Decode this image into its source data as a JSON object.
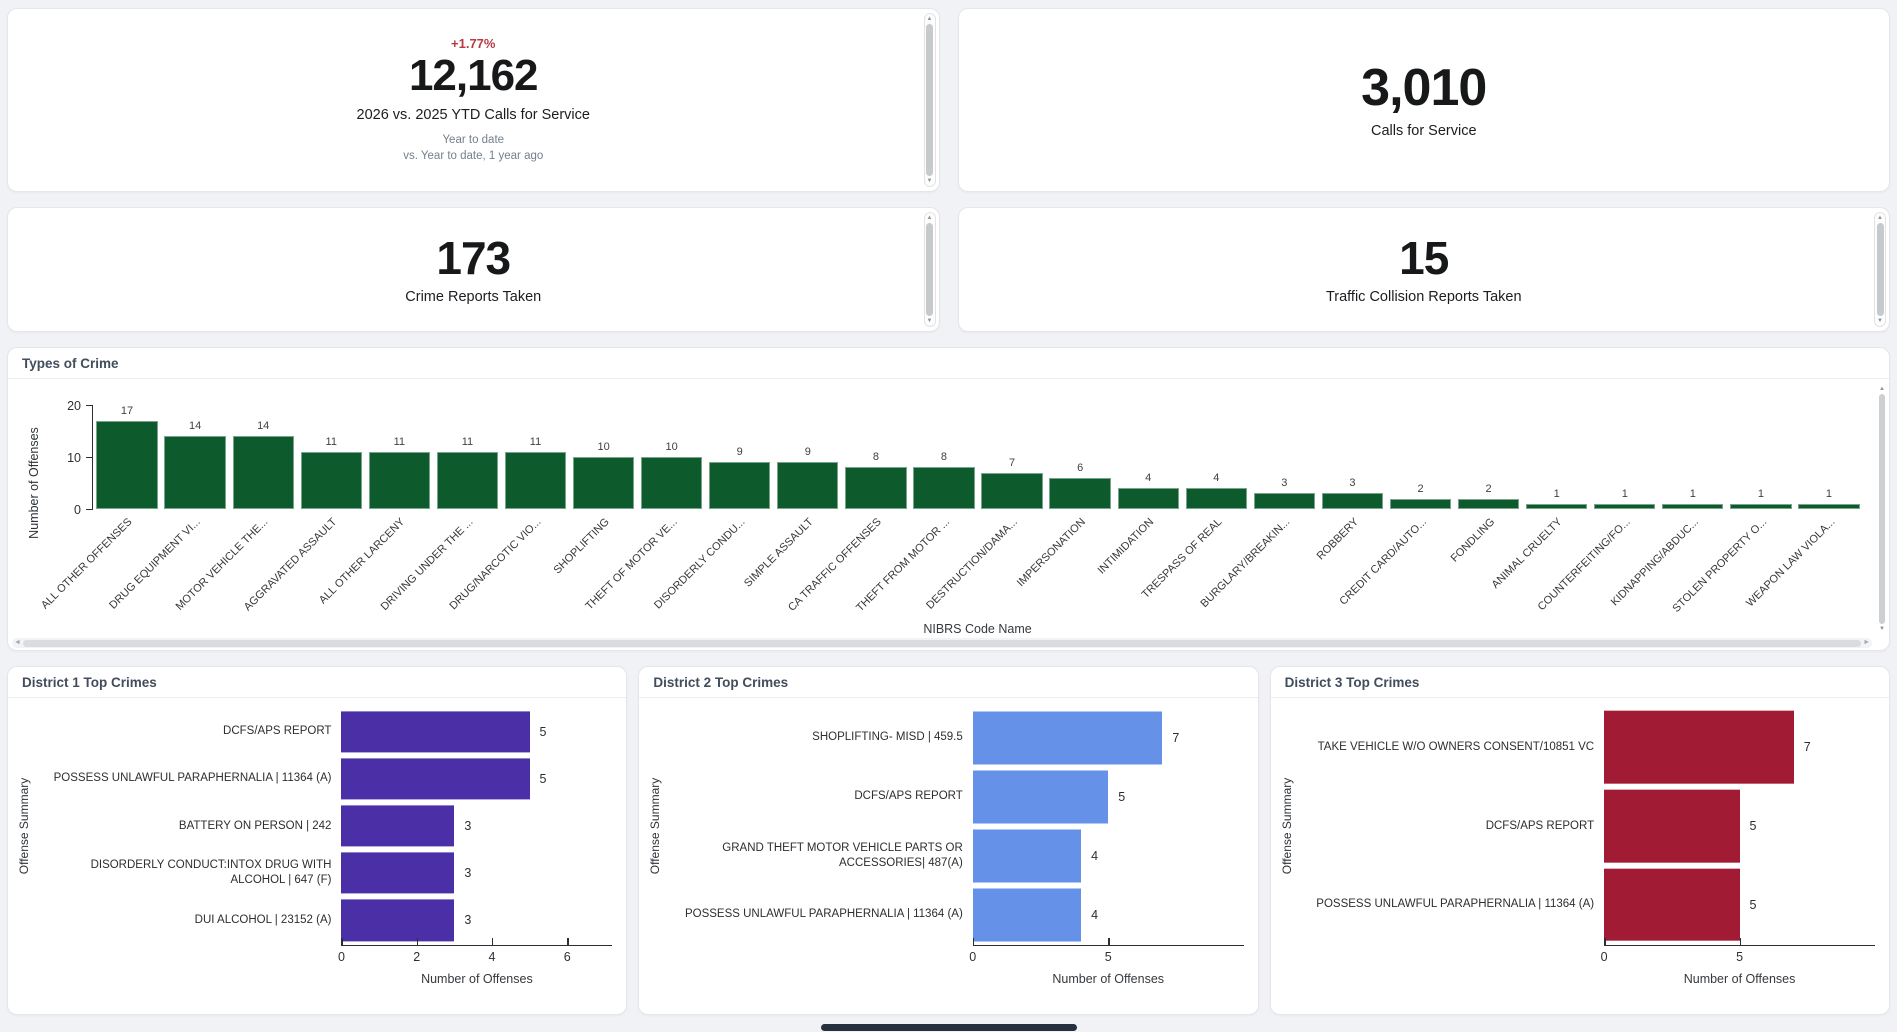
{
  "colors": {
    "page_bg": "#f0f2f5",
    "change_red": "#b83a44",
    "types_green": "#0d5a2c",
    "district1_purple": "#4b2fa6",
    "district2_blue": "#6691e8",
    "district3_red": "#a01b33"
  },
  "icons": {
    "scroll_up": "▲",
    "scroll_down": "▼",
    "scroll_left": "◄",
    "scroll_right": "►"
  },
  "kpis": {
    "ytd": {
      "change": "+1.77%",
      "value": "12,162",
      "label": "2026 vs. 2025 YTD Calls for Service",
      "sub1": "Year to date",
      "sub2": "vs. Year to date, 1 year ago"
    },
    "calls": {
      "value": "3,010",
      "label": "Calls for Service"
    },
    "crime_reports": {
      "value": "173",
      "label": "Crime Reports Taken"
    },
    "collisions": {
      "value": "15",
      "label": "Traffic Collision Reports Taken"
    }
  },
  "chart_data": [
    {
      "id": "types-of-crime",
      "type": "bar",
      "title": "Types of Crime",
      "xlabel": "NIBRS Code Name",
      "ylabel": "Number of Offenses",
      "ylim": [
        0,
        20
      ],
      "yticks": [
        0,
        10,
        20
      ],
      "grid": false,
      "bar_color": "#0d5a2c",
      "categories": [
        "ALL OTHER OFFENSES",
        "DRUG EQUIPMENT VI...",
        "MOTOR VEHICLE THE...",
        "AGGRAVATED ASSAULT",
        "ALL OTHER LARCENY",
        "DRIVING UNDER THE ...",
        "DRUG/NARCOTIC VIO...",
        "SHOPLIFTING",
        "THEFT OF MOTOR VE...",
        "DISORDERLY CONDU...",
        "SIMPLE ASSAULT",
        "CA TRAFFIC OFFENSES",
        "THEFT FROM MOTOR ...",
        "DESTRUCTION/DAMA...",
        "IMPERSONATION",
        "INTIMIDATION",
        "TRESPASS OF REAL",
        "BURGLARY/BREAKIN...",
        "ROBBERY",
        "CREDIT CARD/AUTO...",
        "FONDLING",
        "ANIMAL CRUELTY",
        "COUNTERFEITING/FO...",
        "KIDNAPPING/ABDUC...",
        "STOLEN PROPERTY O...",
        "WEAPON LAW VIOLA..."
      ],
      "values": [
        17,
        14,
        14,
        11,
        11,
        11,
        11,
        10,
        10,
        9,
        9,
        8,
        8,
        7,
        6,
        4,
        4,
        3,
        3,
        2,
        2,
        1,
        1,
        1,
        1,
        1
      ]
    },
    {
      "id": "district-1-top-crimes",
      "type": "horizontal-bar",
      "title": "District 1 Top Crimes",
      "xlabel": "Number of Offenses",
      "ylabel": "Offense Summary",
      "xlim": [
        0,
        7.2
      ],
      "xticks": [
        0,
        2,
        4,
        6
      ],
      "grid": false,
      "bar_color": "#4b2fa6",
      "categories": [
        "DCFS/APS REPORT",
        "POSSESS UNLAWFUL PARAPHERNALIA | 11364 (A)",
        "BATTERY ON PERSON | 242",
        "DISORDERLY CONDUCT:INTOX DRUG WITH ALCOHOL | 647 (F)",
        "DUI ALCOHOL | 23152 (A)"
      ],
      "values": [
        5,
        5,
        3,
        3,
        3
      ]
    },
    {
      "id": "district-2-top-crimes",
      "type": "horizontal-bar",
      "title": "District 2 Top Crimes",
      "xlabel": "Number of Offenses",
      "ylabel": "Offense Summary",
      "xlim": [
        0,
        10
      ],
      "xticks": [
        0,
        5
      ],
      "grid": false,
      "bar_color": "#6691e8",
      "categories": [
        "SHOPLIFTING- MISD | 459.5",
        "DCFS/APS REPORT",
        "GRAND THEFT MOTOR VEHICLE PARTS OR ACCESSORIES| 487(A)",
        "POSSESS UNLAWFUL PARAPHERNALIA | 11364 (A)"
      ],
      "values": [
        7,
        5,
        4,
        4
      ]
    },
    {
      "id": "district-3-top-crimes",
      "type": "horizontal-bar",
      "title": "District 3 Top Crimes",
      "xlabel": "Number of Offenses",
      "ylabel": "Offense Summary",
      "xlim": [
        0,
        10
      ],
      "xticks": [
        0,
        5
      ],
      "grid": false,
      "bar_color": "#a01b33",
      "categories": [
        "TAKE VEHICLE W/O OWNERS CONSENT/10851 VC",
        "DCFS/APS REPORT",
        "POSSESS UNLAWFUL PARAPHERNALIA | 11364 (A)"
      ],
      "values": [
        7,
        5,
        5
      ]
    }
  ]
}
